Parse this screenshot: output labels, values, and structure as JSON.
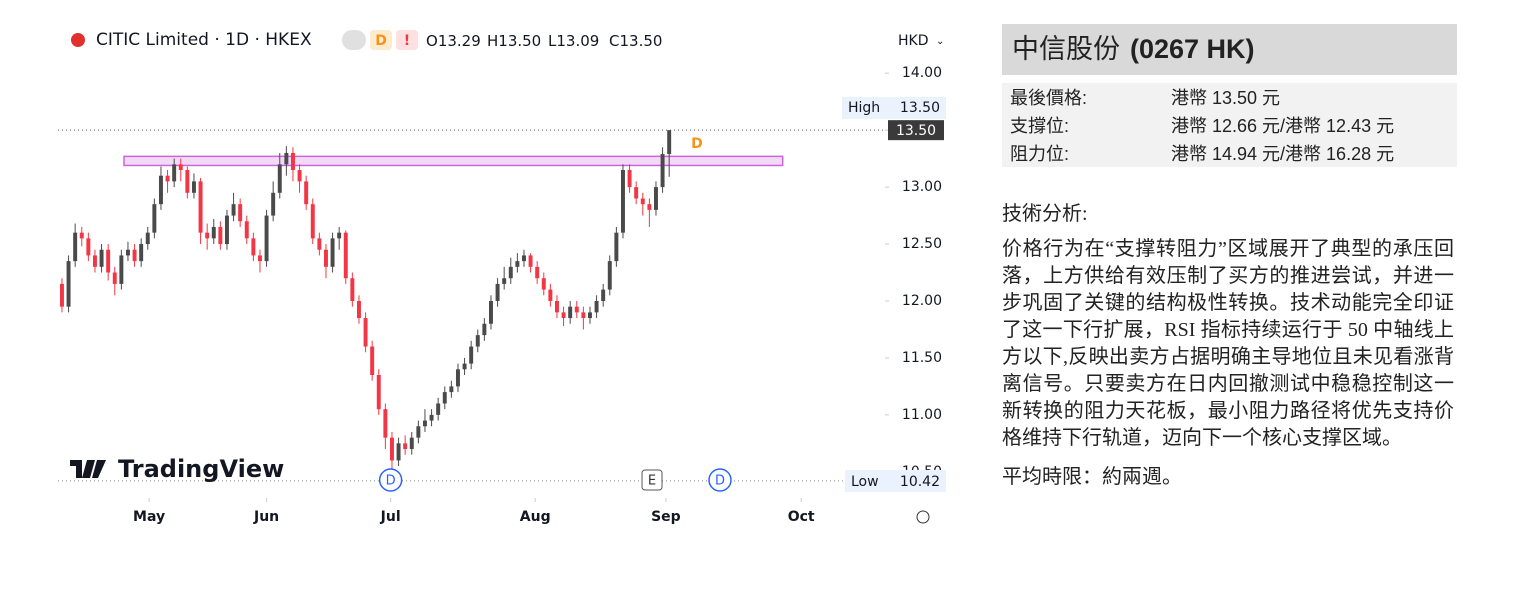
{
  "chart_data": {
    "type": "candlestick",
    "title": "CITIC Limited · 1D · HKEX",
    "badges": [
      "D",
      "!"
    ],
    "ohlc_legend": [
      {
        "key": "O",
        "value": "13.29"
      },
      {
        "key": "H",
        "value": "13.50"
      },
      {
        "key": "L",
        "value": "13.09"
      },
      {
        "key": "C",
        "value": "13.50"
      }
    ],
    "currency": "HKD",
    "up_color": "#4a4a4a",
    "down_color": "#f23645",
    "open": [
      12.15,
      11.95,
      12.35,
      12.6,
      12.55,
      12.4,
      12.3,
      12.45,
      12.25,
      12.15,
      12.4,
      12.45,
      12.35,
      12.5,
      12.6,
      12.85,
      13.1,
      13.05,
      13.2,
      13.15,
      12.95,
      13.05,
      12.6,
      12.55,
      12.65,
      12.5,
      12.75,
      12.85,
      12.7,
      12.55,
      12.4,
      12.35,
      12.75,
      12.95,
      13.2,
      13.3,
      13.15,
      13.05,
      12.85,
      12.55,
      12.45,
      12.3,
      12.55,
      12.6,
      12.2,
      12,
      11.85,
      11.6,
      11.35,
      11.05,
      10.8,
      10.6,
      10.75,
      10.7,
      10.8,
      10.9,
      10.95,
      11,
      11.1,
      11.2,
      11.25,
      11.4,
      11.45,
      11.6,
      11.7,
      11.8,
      12,
      12.15,
      12.2,
      12.3,
      12.35,
      12.4,
      12.3,
      12.2,
      12.1,
      12,
      11.9,
      11.85,
      11.95,
      11.9,
      11.85,
      11.9,
      12,
      12.1,
      12.35,
      12.6,
      13.15,
      13,
      12.9,
      12.85,
      12.8,
      13,
      13.29
    ],
    "high": [
      12.2,
      12.4,
      12.68,
      12.65,
      12.6,
      12.45,
      12.5,
      12.5,
      12.3,
      12.45,
      12.52,
      12.5,
      12.55,
      12.65,
      12.9,
      13.18,
      13.15,
      13.25,
      13.25,
      13.18,
      13.12,
      13.08,
      12.68,
      12.72,
      12.7,
      12.8,
      12.95,
      12.9,
      12.75,
      12.6,
      12.45,
      12.8,
      13.05,
      13.3,
      13.36,
      13.35,
      13.2,
      13.1,
      12.9,
      12.6,
      12.5,
      12.6,
      12.65,
      12.62,
      12.25,
      12.05,
      11.9,
      11.65,
      11.4,
      11.1,
      10.85,
      10.8,
      10.82,
      10.85,
      10.95,
      11.05,
      11.05,
      11.15,
      11.25,
      11.3,
      11.45,
      11.5,
      11.65,
      11.75,
      11.85,
      12.05,
      12.2,
      12.3,
      12.38,
      12.42,
      12.45,
      12.42,
      12.35,
      12.25,
      12.15,
      12.05,
      11.95,
      12,
      12,
      11.95,
      11.95,
      12.05,
      12.15,
      12.4,
      12.65,
      13.2,
      13.2,
      13.05,
      12.95,
      12.9,
      13.05,
      13.35,
      13.5
    ],
    "low": [
      11.9,
      11.9,
      12.3,
      12.48,
      12.35,
      12.25,
      12.25,
      12.18,
      12.05,
      12.1,
      12.35,
      12.3,
      12.3,
      12.45,
      12.55,
      12.8,
      12.95,
      13,
      13.05,
      12.9,
      12.9,
      12.5,
      12.45,
      12.5,
      12.45,
      12.45,
      12.7,
      12.65,
      12.5,
      12.35,
      12.25,
      12.3,
      12.7,
      12.9,
      13.1,
      13.05,
      12.95,
      12.8,
      12.5,
      12.4,
      12.2,
      12.25,
      12.45,
      12.15,
      11.95,
      11.8,
      11.55,
      11.3,
      11,
      10.7,
      10.42,
      10.55,
      10.65,
      10.65,
      10.75,
      10.85,
      10.9,
      10.95,
      11.05,
      11.15,
      11.2,
      11.35,
      11.4,
      11.55,
      11.65,
      11.75,
      11.95,
      12.1,
      12.15,
      12.25,
      12.3,
      12.25,
      12.15,
      12.05,
      11.95,
      11.85,
      11.78,
      11.8,
      11.85,
      11.75,
      11.8,
      11.85,
      11.95,
      12.05,
      12.3,
      12.55,
      12.95,
      12.85,
      12.75,
      12.65,
      12.75,
      12.95,
      13.09
    ],
    "close": [
      11.95,
      12.35,
      12.6,
      12.55,
      12.4,
      12.3,
      12.45,
      12.25,
      12.15,
      12.4,
      12.45,
      12.35,
      12.5,
      12.6,
      12.85,
      13.1,
      13.05,
      13.2,
      13.15,
      12.95,
      13.05,
      12.6,
      12.55,
      12.65,
      12.5,
      12.75,
      12.85,
      12.7,
      12.55,
      12.4,
      12.35,
      12.75,
      12.95,
      13.2,
      13.3,
      13.15,
      13.05,
      12.85,
      12.55,
      12.45,
      12.3,
      12.55,
      12.6,
      12.2,
      12,
      11.85,
      11.6,
      11.35,
      11.05,
      10.8,
      10.6,
      10.75,
      10.7,
      10.8,
      10.9,
      10.95,
      11,
      11.1,
      11.2,
      11.25,
      11.4,
      11.45,
      11.6,
      11.7,
      11.8,
      12,
      12.15,
      12.2,
      12.3,
      12.35,
      12.4,
      12.3,
      12.2,
      12.1,
      12,
      11.9,
      11.85,
      11.95,
      11.9,
      11.85,
      11.9,
      12,
      12.1,
      12.35,
      12.6,
      13.15,
      13,
      12.9,
      12.85,
      12.8,
      13,
      13.29,
      13.5
    ],
    "xlim": [
      -0.6,
      124.7
    ],
    "ylim": [
      10.27,
      14.16
    ],
    "xticks": [
      {
        "value": 13.2,
        "label": "May"
      },
      {
        "value": 31,
        "label": "Jun"
      },
      {
        "value": 49.8,
        "label": "Jul"
      },
      {
        "value": 71.7,
        "label": "Aug"
      },
      {
        "value": 91.5,
        "label": "Sep"
      },
      {
        "value": 112,
        "label": "Oct"
      }
    ],
    "yticks": [
      {
        "value": 10.5,
        "label": "10.50"
      },
      {
        "value": 11,
        "label": "11.00"
      },
      {
        "value": 11.5,
        "label": "11.50"
      },
      {
        "value": 12,
        "label": "12.00"
      },
      {
        "value": 12.5,
        "label": "12.50"
      },
      {
        "value": 13,
        "label": "13.00"
      },
      {
        "value": 13.5,
        "label": "13.50"
      },
      {
        "value": 14,
        "label": "14.00"
      }
    ],
    "last_price": {
      "value": 13.5,
      "label": "13.50"
    },
    "high_marker": {
      "text": "High",
      "value": "13.50"
    },
    "low_marker": {
      "text": "Low",
      "value": "10.42"
    },
    "zone": {
      "from": 13.19,
      "to": 13.27,
      "x_start": 9.4,
      "x_end": 109.2,
      "color": "#cc66dd"
    },
    "events": [
      {
        "x": 49.8,
        "label": "D"
      },
      {
        "x": 89.4,
        "label": "E"
      },
      {
        "x": 99.7,
        "label": "D"
      }
    ],
    "flag": {
      "x": 96.2,
      "label": "D"
    },
    "watermark": "TradingView"
  },
  "panel": {
    "title_name": "中信股份",
    "title_code": "(0267 HK)",
    "rows": [
      [
        "最後價格:",
        "港幣 13.50 元"
      ],
      [
        "支撐位:",
        "港幣 12.66 元/港幣 12.43 元"
      ],
      [
        "阻力位:",
        "港幣 14.94 元/港幣 16.28 元"
      ]
    ],
    "heading": "技術分析:",
    "body": "价格行为在“支撑转阻力”区域展开了典型的承压回落，上方供给有效压制了买方的推进尝试，并进一步巩固了关键的结构极性转换。技术动能完全印证了这一下行扩展，RSI 指标持续运行于 50 中轴线上方以下,反映出卖方占据明确主导地位且未见看涨背离信号。只要卖方在日内回撤测试中稳稳控制这一新转换的阻力天花板，最小阻力路径将优先支持价格维持下行轨道，迈向下一个核心支撑区域。",
    "footer": "平均時限：約兩週。"
  }
}
